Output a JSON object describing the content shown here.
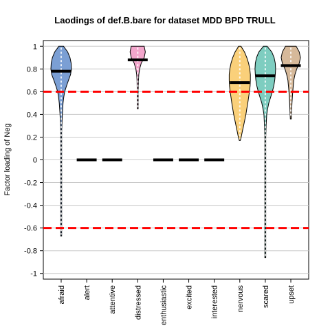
{
  "chart_data": {
    "type": "violin",
    "title": "Laodings of def.B.bare for dataset MDD BPD TRULL",
    "xlabel": "",
    "ylabel": "Factor loading of Neg",
    "ylim": [
      -1.05,
      1.05
    ],
    "y_ticks": [
      1,
      0.8,
      0.6,
      0.4,
      0.2,
      0,
      -0.2,
      -0.4,
      -0.6,
      -0.8,
      -1
    ],
    "y_tick_labels": [
      "1",
      "0.8",
      "0.6",
      "0.4",
      "0.2",
      "0",
      "-0.2",
      "-0.4",
      "-0.6",
      "-0.8",
      "-1"
    ],
    "grid": true,
    "thresholds": [
      0.6,
      -0.6
    ],
    "threshold_color": "#ff0000",
    "categories": [
      "afraid",
      "alert",
      "attentive",
      "distressed",
      "enthusiastic",
      "excited",
      "interested",
      "nervous",
      "scared",
      "upset"
    ],
    "series": [
      {
        "category": "afraid",
        "color": "#7b9fd4",
        "median": 0.78,
        "profile": [
          [
            1.0,
            0.2
          ],
          [
            0.95,
            0.55
          ],
          [
            0.9,
            0.75
          ],
          [
            0.85,
            0.85
          ],
          [
            0.8,
            0.88
          ],
          [
            0.75,
            0.8
          ],
          [
            0.7,
            0.62
          ],
          [
            0.65,
            0.45
          ],
          [
            0.6,
            0.3
          ],
          [
            0.55,
            0.22
          ],
          [
            0.5,
            0.16
          ],
          [
            0.4,
            0.1
          ],
          [
            0.3,
            0.06
          ],
          [
            0.25,
            0.03
          ],
          [
            0.15,
            0.015
          ],
          [
            0.0,
            0.01
          ],
          [
            -0.25,
            0.01
          ],
          [
            -0.4,
            0.006
          ],
          [
            -0.67,
            0.004
          ]
        ]
      },
      {
        "category": "alert",
        "color": "#000000",
        "median": 0.0,
        "profile": []
      },
      {
        "category": "attentive",
        "color": "#000000",
        "median": 0.0,
        "profile": []
      },
      {
        "category": "distressed",
        "color": "#f3a6cc",
        "median": 0.88,
        "profile": [
          [
            1.0,
            0.55
          ],
          [
            0.95,
            0.65
          ],
          [
            0.9,
            0.55
          ],
          [
            0.85,
            0.3
          ],
          [
            0.8,
            0.16
          ],
          [
            0.75,
            0.09
          ],
          [
            0.7,
            0.06
          ],
          [
            0.6,
            0.04
          ],
          [
            0.5,
            0.03
          ],
          [
            0.45,
            0.015
          ]
        ]
      },
      {
        "category": "enthusiastic",
        "color": "#000000",
        "median": 0.0,
        "profile": []
      },
      {
        "category": "excited",
        "color": "#000000",
        "median": 0.0,
        "profile": []
      },
      {
        "category": "interested",
        "color": "#000000",
        "median": 0.0,
        "profile": []
      },
      {
        "category": "nervous",
        "color": "#fad07a",
        "median": 0.68,
        "profile": [
          [
            1.0,
            0.1
          ],
          [
            0.95,
            0.4
          ],
          [
            0.9,
            0.6
          ],
          [
            0.85,
            0.75
          ],
          [
            0.8,
            0.85
          ],
          [
            0.75,
            0.9
          ],
          [
            0.7,
            0.9
          ],
          [
            0.65,
            0.88
          ],
          [
            0.6,
            0.82
          ],
          [
            0.55,
            0.75
          ],
          [
            0.5,
            0.68
          ],
          [
            0.45,
            0.6
          ],
          [
            0.4,
            0.52
          ],
          [
            0.35,
            0.42
          ],
          [
            0.3,
            0.32
          ],
          [
            0.25,
            0.22
          ],
          [
            0.2,
            0.12
          ],
          [
            0.17,
            0.03
          ]
        ]
      },
      {
        "category": "scared",
        "color": "#7ecdc0",
        "median": 0.74,
        "profile": [
          [
            1.0,
            0.15
          ],
          [
            0.95,
            0.55
          ],
          [
            0.9,
            0.75
          ],
          [
            0.85,
            0.85
          ],
          [
            0.8,
            0.88
          ],
          [
            0.75,
            0.85
          ],
          [
            0.7,
            0.8
          ],
          [
            0.65,
            0.72
          ],
          [
            0.6,
            0.6
          ],
          [
            0.55,
            0.45
          ],
          [
            0.5,
            0.3
          ],
          [
            0.45,
            0.2
          ],
          [
            0.4,
            0.12
          ],
          [
            0.3,
            0.07
          ],
          [
            0.2,
            0.04
          ],
          [
            0.0,
            0.015
          ],
          [
            -0.3,
            0.012
          ],
          [
            -0.6,
            0.012
          ],
          [
            -0.86,
            0.008
          ]
        ]
      },
      {
        "category": "upset",
        "color": "#d6b99a",
        "median": 0.83,
        "profile": [
          [
            1.0,
            0.45
          ],
          [
            0.95,
            0.72
          ],
          [
            0.9,
            0.82
          ],
          [
            0.85,
            0.72
          ],
          [
            0.8,
            0.5
          ],
          [
            0.75,
            0.35
          ],
          [
            0.7,
            0.25
          ],
          [
            0.6,
            0.16
          ],
          [
            0.5,
            0.1
          ],
          [
            0.4,
            0.06
          ],
          [
            0.36,
            0.02
          ]
        ]
      }
    ]
  }
}
